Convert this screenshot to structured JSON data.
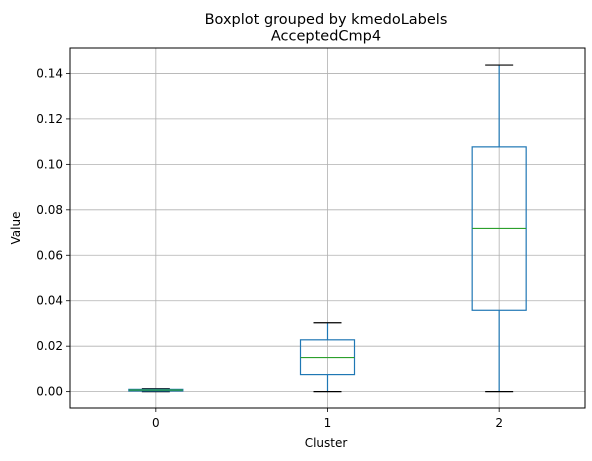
{
  "chart_data": {
    "type": "boxplot",
    "suptitle": "Boxplot grouped by kmedoLabels",
    "title": "AcceptedCmp4",
    "xlabel": "Cluster",
    "ylabel": "Value",
    "categories": [
      "0",
      "1",
      "2"
    ],
    "ylim": [
      -0.0072,
      0.1512
    ],
    "yticks": [
      0.0,
      0.02,
      0.04,
      0.06,
      0.08,
      0.1,
      0.12,
      0.14
    ],
    "ytick_labels": [
      "0.00",
      "0.02",
      "0.04",
      "0.06",
      "0.08",
      "0.10",
      "0.12",
      "0.14"
    ],
    "grid": true,
    "boxes": [
      {
        "category": "0",
        "whisker_low": 0.0,
        "q1": 0.0003,
        "median": 0.0007,
        "q3": 0.001,
        "whisker_high": 0.0013
      },
      {
        "category": "1",
        "whisker_low": 0.0,
        "q1": 0.0075,
        "median": 0.015,
        "q3": 0.0228,
        "whisker_high": 0.0303
      },
      {
        "category": "2",
        "whisker_low": 0.0,
        "q1": 0.0358,
        "median": 0.0718,
        "q3": 0.1077,
        "whisker_high": 0.1437
      }
    ],
    "colors": {
      "box": "#1f77b4",
      "median": "#2ca02c",
      "whisker_cap": "#000000",
      "grid": "#b0b0b0"
    }
  }
}
